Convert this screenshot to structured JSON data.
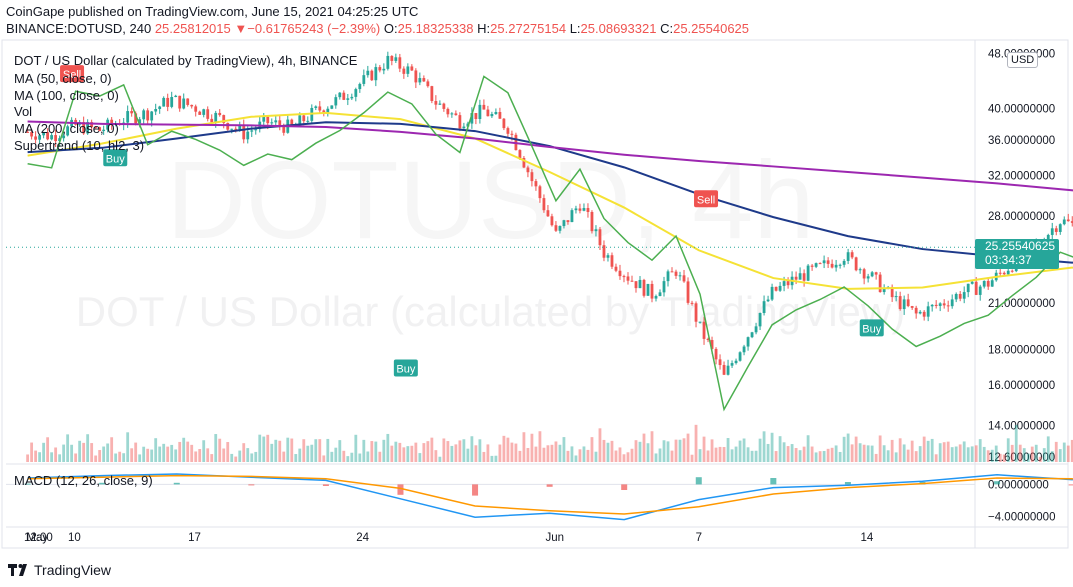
{
  "header": {
    "publisher": "CoinGape published on TradingView.com, June 15, 2021 04:25:25 UTC",
    "symbol": "BINANCE:DOTUSD, 240",
    "last": "25.25812015",
    "change_arrow": "▼",
    "change": "−0.61765243 (−2.39%)",
    "o_label": "O:",
    "o": "25.18325338",
    "h_label": "H:",
    "h": "25.27275154",
    "l_label": "L:",
    "l": "25.08693321",
    "c_label": "C:",
    "c": "25.25540625"
  },
  "legend": {
    "title": "DOT / US Dollar (calculated by TradingView), 4h, BINANCE",
    "indicators": [
      "MA (50, close, 0)",
      "MA (100, close, 0)",
      "Vol",
      "MA (200, close, 0)",
      "Supertrend (10, hl2, 3)"
    ]
  },
  "macd_legend": "MACD (12, 26, close, 9)",
  "currency": "USD",
  "price_label": {
    "price": "25.25540625",
    "countdown": "03:34:37"
  },
  "watermark": {
    "symbol": "DOTUSD, 4h",
    "description": "DOT / US Dollar (calculated by TradingView)"
  },
  "brand": "TradingView",
  "colors": {
    "up": "#26a69a",
    "down": "#ef5350",
    "ma50": "#f5e235",
    "ma100": "#1e3a8a",
    "ma200": "#9c27b0",
    "supertrend_up": "#4caf50",
    "supertrend_down": "#ef5350",
    "macd": "#2196f3",
    "signal": "#ff9800"
  },
  "chart_data": {
    "type": "candlestick",
    "title": "DOT / US Dollar (calculated by TradingView), 4h, BINANCE",
    "price_axis": {
      "scale": "log",
      "ticks": [
        "48.00000000",
        "40.00000000",
        "36.00000000",
        "32.00000000",
        "28.00000000",
        "21.00000000",
        "18.00000000",
        "16.00000000",
        "14.00000000",
        "12.60000000"
      ],
      "tick_values": [
        48,
        40,
        36,
        32,
        28,
        21,
        18,
        16,
        14,
        12.6
      ],
      "range": [
        12.4,
        49.5
      ]
    },
    "macd_axis": {
      "ticks": [
        "0.00000000",
        "−4.00000000"
      ],
      "tick_values": [
        0,
        -4
      ],
      "range": [
        -5.2,
        2.3
      ]
    },
    "time_axis": {
      "labels": [
        "May",
        "12:00",
        "10",
        "17",
        "24",
        "Jun",
        "7",
        "14"
      ],
      "label_day_index": [
        0.0,
        0.5,
        2.0,
        7.0,
        14.0,
        22.0,
        28.0,
        35.0
      ],
      "range_days": [
        -0.85,
        39.5
      ],
      "origin": "2021-05-08",
      "note": "labels as printed; day index of each label counted from the first visible session"
    },
    "close_series": [
      37.0,
      36.5,
      37.8,
      37.2,
      38.6,
      39.4,
      41.2,
      40.1,
      38.7,
      36.8,
      38.2,
      37.5,
      39.6,
      41.3,
      43.8,
      46.9,
      45.1,
      40.8,
      38.4,
      39.7,
      37.6,
      31.5,
      26.3,
      29.2,
      24.8,
      22.9,
      21.6,
      23.4,
      19.3,
      16.4,
      18.9,
      21.7,
      22.8,
      23.6,
      24.6,
      23.1,
      21.4,
      20.2,
      20.9,
      21.8,
      22.4,
      23.9,
      25.4,
      27.6,
      26.8,
      25.7,
      24.6,
      23.5,
      22.9,
      21.3,
      20.8,
      22.2,
      23.1,
      22.5,
      21.6,
      20.4,
      20.9,
      21.7,
      23.4,
      25.3
    ],
    "series": [
      {
        "name": "MA (50, close, 0)",
        "values": [
          34.2,
          35.6,
          37.4,
          38.9,
          39.4,
          38.6,
          36.2,
          32.4,
          28.8,
          25.0,
          22.8,
          22.0,
          22.1,
          22.9,
          23.6,
          24.0,
          23.5,
          23.3,
          22.8,
          22.4
        ]
      },
      {
        "name": "MA (100, close, 0)",
        "values": [
          34.6,
          35.1,
          36.2,
          37.4,
          38.2,
          38.0,
          37.1,
          35.3,
          32.9,
          30.1,
          27.9,
          26.2,
          25.1,
          24.5,
          24.0,
          23.8,
          23.5,
          23.4,
          23.3,
          23.2
        ]
      },
      {
        "name": "MA (200, close, 0)",
        "values": [
          38.3,
          38.0,
          37.9,
          37.8,
          37.6,
          37.0,
          36.2,
          35.2,
          34.3,
          33.6,
          33.0,
          32.4,
          31.8,
          31.2,
          30.5,
          29.7,
          28.7,
          27.9,
          27.1,
          26.5
        ]
      }
    ],
    "markers": [
      {
        "label": "Sell",
        "day": 1.9,
        "price": 44.8
      },
      {
        "label": "Buy",
        "day": 3.7,
        "price": 33.9
      },
      {
        "label": "Buy",
        "day": 15.8,
        "price": 16.9
      },
      {
        "label": "Sell",
        "day": 28.3,
        "price": 29.6
      },
      {
        "label": "Buy",
        "day": 35.2,
        "price": 19.3
      }
    ],
    "macd": {
      "name": "MACD (12, 26, close, 9)",
      "values": [
        0.8,
        1.1,
        1.3,
        0.9,
        0.5,
        -1.8,
        -4.1,
        -3.6,
        -4.4,
        -1.9,
        -0.4,
        -0.1,
        0.4,
        1.2,
        0.6,
        0.1,
        -0.4,
        -0.5,
        0.2,
        1.0
      ]
    },
    "signal": {
      "values": [
        0.7,
        0.9,
        1.1,
        1.0,
        0.7,
        -0.5,
        -2.7,
        -3.3,
        -3.7,
        -2.8,
        -1.2,
        -0.4,
        0.1,
        0.8,
        0.7,
        0.3,
        -0.2,
        -0.4,
        -0.1,
        0.5
      ]
    },
    "legend_position": "top-left",
    "grid": false
  }
}
